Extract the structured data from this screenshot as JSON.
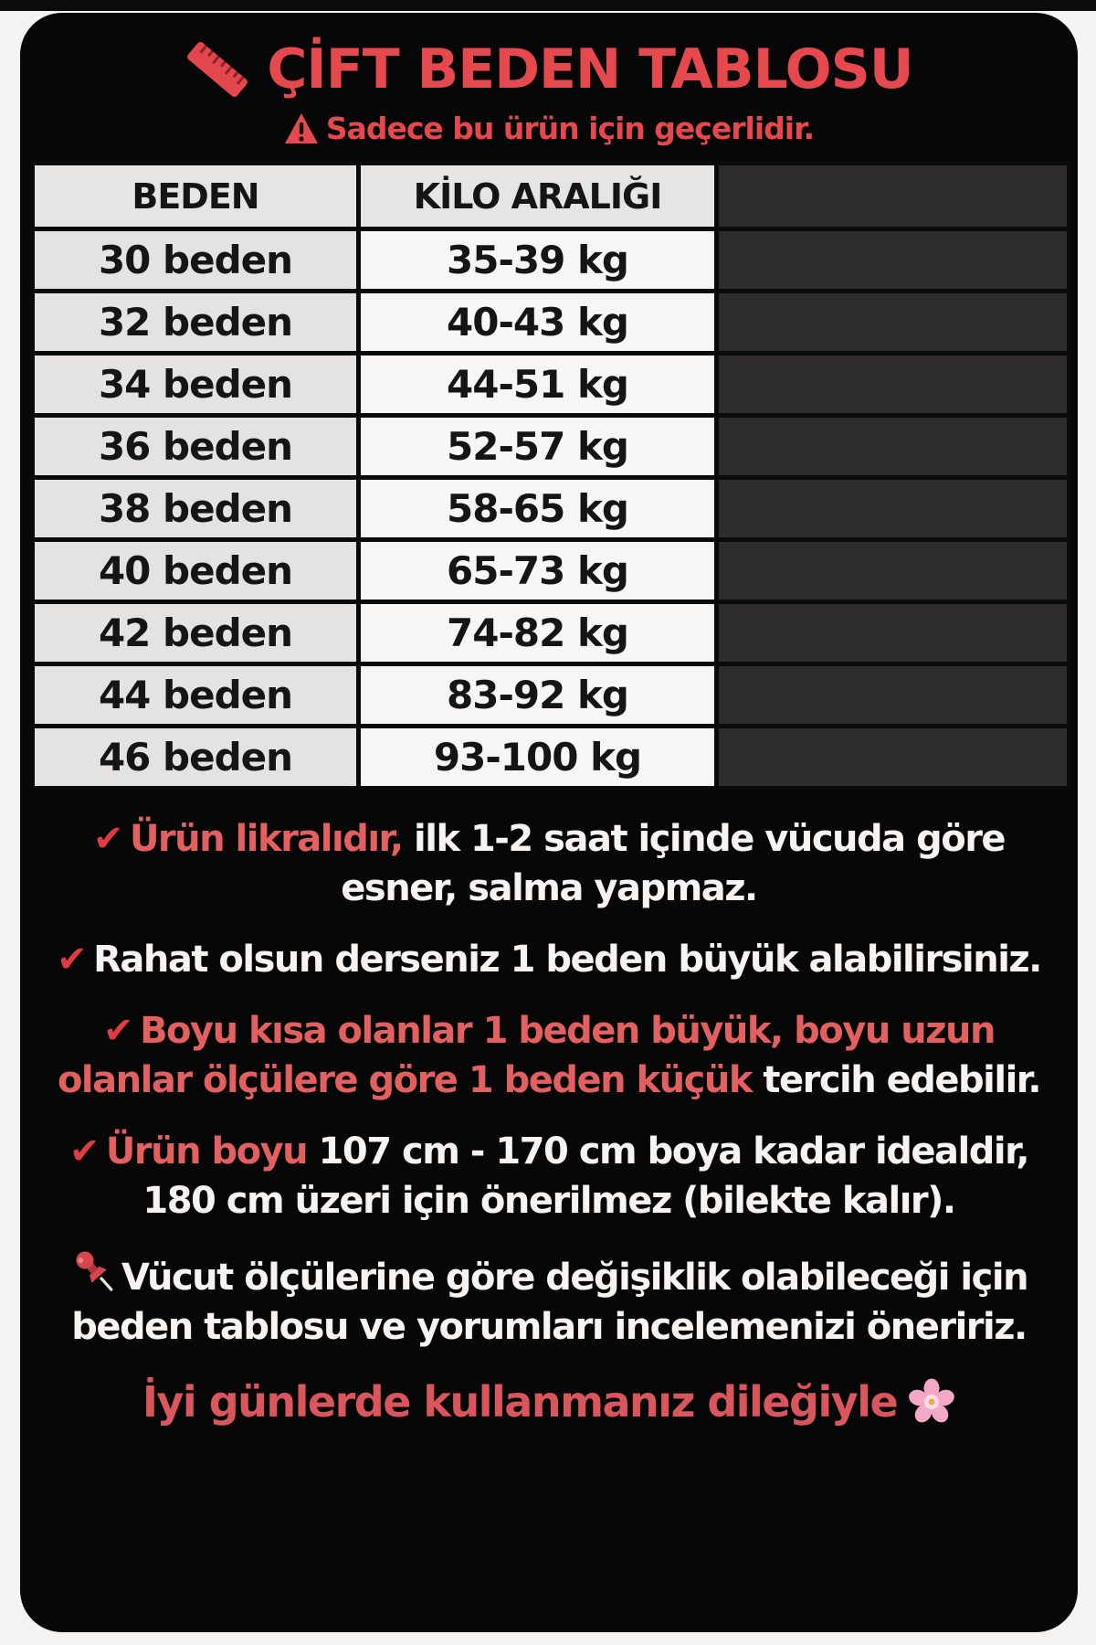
{
  "title": {
    "text": "ÇİFT BEDEN TABLOSU",
    "icon": "ruler-icon"
  },
  "warning": {
    "icon": "warning-triangle-icon",
    "text": "Sadece bu ürün için geçerlidir."
  },
  "table": {
    "headers": [
      "BEDEN",
      "KİLO ARALIĞI",
      ""
    ],
    "rows": [
      {
        "beden": "30 beden",
        "kilo": "35-39 kg"
      },
      {
        "beden": "32 beden",
        "kilo": "40-43 kg"
      },
      {
        "beden": "34 beden",
        "kilo": "44-51 kg"
      },
      {
        "beden": "36 beden",
        "kilo": "52-57 kg"
      },
      {
        "beden": "38 beden",
        "kilo": "58-65 kg"
      },
      {
        "beden": "40 beden",
        "kilo": "65-73 kg"
      },
      {
        "beden": "42 beden",
        "kilo": "74-82 kg"
      },
      {
        "beden": "44 beden",
        "kilo": "83-92 kg"
      },
      {
        "beden": "46 beden",
        "kilo": "93-100 kg"
      }
    ]
  },
  "notes": [
    {
      "icon": "check-icon",
      "segments": [
        {
          "text": "Ürün likralıdır,",
          "color": "red"
        },
        {
          "text": " ilk 1-2 saat içinde vücuda göre esner, salma yapmaz.",
          "color": "white"
        }
      ]
    },
    {
      "icon": "check-icon",
      "segments": [
        {
          "text": "Rahat olsun derseniz 1 beden büyük alabilirsiniz.",
          "color": "white"
        }
      ]
    },
    {
      "icon": "check-icon",
      "segments": [
        {
          "text": "Boyu kısa olanlar 1 beden büyük, boyu uzun olanlar ölçülere göre 1 beden küçük",
          "color": "red"
        },
        {
          "text": " tercih edebilir.",
          "color": "white"
        }
      ]
    },
    {
      "icon": "check-icon",
      "segments": [
        {
          "text": "Ürün boyu",
          "color": "red"
        },
        {
          "text": " 107 cm - 170 cm boya kadar idealdir, 180 cm üzeri için önerilmez (bilekte kalır).",
          "color": "white"
        }
      ]
    },
    {
      "icon": "pushpin-icon",
      "segments": [
        {
          "text": "Vücut ölçülerine göre değişiklik olabileceği için beden tablosu ve yorumları incelemenizi öneririz.",
          "color": "white"
        }
      ]
    }
  ],
  "footer": {
    "text": "İyi günlerde kullanmanız dileğiyle",
    "icon": "flower-icon"
  },
  "colors": {
    "page_bg": "#f5f3f1",
    "card_bg": "#080707",
    "title_red": "#e6494d",
    "body_red": "#e2605f",
    "check_red": "#df3b41",
    "footer_red": "#d9565c",
    "text_white": "#f6f3f1",
    "table_col1_bg": "#e4e3e1",
    "table_col2_bg": "#f7f6f4",
    "table_col3_bg": "#2e2c2c",
    "table_border": "#0b0a0a",
    "flower_pink": "#f4a7c6"
  }
}
